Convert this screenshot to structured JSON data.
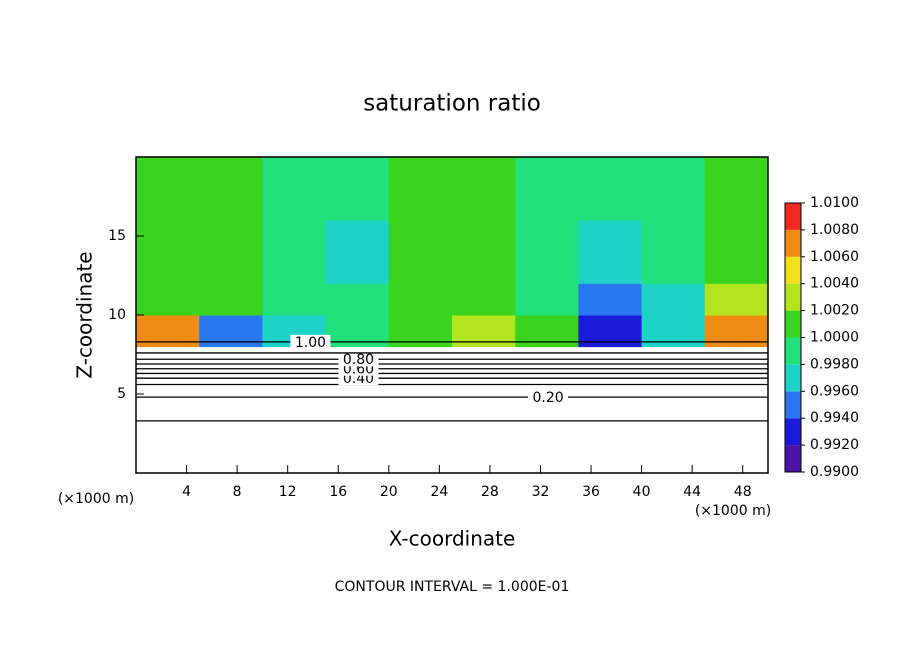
{
  "chart_data": {
    "type": "contour",
    "title": "saturation ratio",
    "x_label": "X-coordinate",
    "y_label": "Z-coordinate",
    "x_unit_left": "(×1000 m)",
    "x_unit_right": "(×1000 m)",
    "annotation": "CONTOUR INTERVAL = 1.000E-01",
    "xlim": [
      0,
      50
    ],
    "ylim": [
      0,
      20
    ],
    "xticks": [
      4,
      8,
      12,
      16,
      20,
      24,
      28,
      32,
      36,
      40,
      44,
      48
    ],
    "yticks": [
      5,
      10,
      15
    ],
    "field": {
      "x": [
        2.5,
        7.5,
        12.5,
        17.5,
        22.5,
        27.5,
        32.5,
        37.5,
        42.5,
        47.5
      ],
      "z": [
        9,
        11,
        13,
        15,
        17,
        19
      ],
      "values": [
        [
          1.007,
          0.995,
          0.997,
          0.999,
          1.0005,
          1.003,
          1.0005,
          0.993,
          0.997,
          1.007
        ],
        [
          1.002,
          1.001,
          0.999,
          0.999,
          1.0005,
          1.0005,
          0.999,
          0.995,
          0.998,
          1.003
        ],
        [
          1.001,
          1.002,
          0.999,
          0.998,
          1.0005,
          1.0005,
          0.999,
          0.997,
          0.999,
          1.0005
        ],
        [
          1.0005,
          1.001,
          0.999,
          0.998,
          1.0005,
          1.0005,
          0.999,
          0.998,
          0.999,
          1.0005
        ],
        [
          1.0005,
          1.0005,
          0.999,
          0.999,
          1.0005,
          1.0005,
          0.999,
          0.999,
          0.999,
          1.0005
        ],
        [
          1.0005,
          1.0005,
          0.999,
          0.999,
          1.0005,
          1.0005,
          0.999,
          0.999,
          0.999,
          1.0005
        ]
      ]
    },
    "contours": {
      "levels": [
        0.1,
        0.2,
        0.3,
        0.4,
        0.5,
        0.6,
        0.7,
        0.8,
        0.9,
        1.0
      ],
      "heights": [
        3.3,
        4.8,
        5.6,
        6.0,
        6.3,
        6.6,
        6.9,
        7.2,
        7.6,
        8.3
      ],
      "value_labels": [
        null,
        "0.20",
        null,
        "0.40",
        null,
        "0.60",
        null,
        "0.80",
        null,
        "1.00"
      ]
    },
    "colorbar": {
      "ticks": [
        {
          "value": 0.99,
          "label": "0.9900"
        },
        {
          "value": 0.992,
          "label": "0.9920"
        },
        {
          "value": 0.994,
          "label": "0.9940"
        },
        {
          "value": 0.996,
          "label": "0.9960"
        },
        {
          "value": 0.998,
          "label": "0.9980"
        },
        {
          "value": 1.0,
          "label": "1.0000"
        },
        {
          "value": 1.002,
          "label": "1.0020"
        },
        {
          "value": 1.004,
          "label": "1.0040"
        },
        {
          "value": 1.006,
          "label": "1.0060"
        },
        {
          "value": 1.008,
          "label": "1.0080"
        },
        {
          "value": 1.01,
          "label": "1.0100"
        }
      ],
      "colors": [
        "#4b14a8",
        "#1a1ad8",
        "#2a78f0",
        "#1ed2c8",
        "#22e07a",
        "#3ad41e",
        "#b4e41e",
        "#f0e01e",
        "#f08c14",
        "#f02a1e"
      ]
    }
  }
}
